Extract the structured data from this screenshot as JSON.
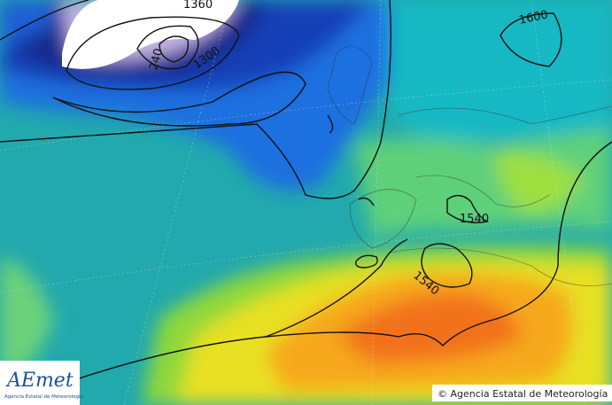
{
  "map": {
    "contour_labels": [
      "1360",
      "1300",
      "240",
      "1600",
      "1540",
      "1540"
    ],
    "logo": {
      "name": "AEmet",
      "subtitle": "Agencia Estatal de Meteorología"
    },
    "copyright": "© Agencia Estatal de Meteorología"
  }
}
